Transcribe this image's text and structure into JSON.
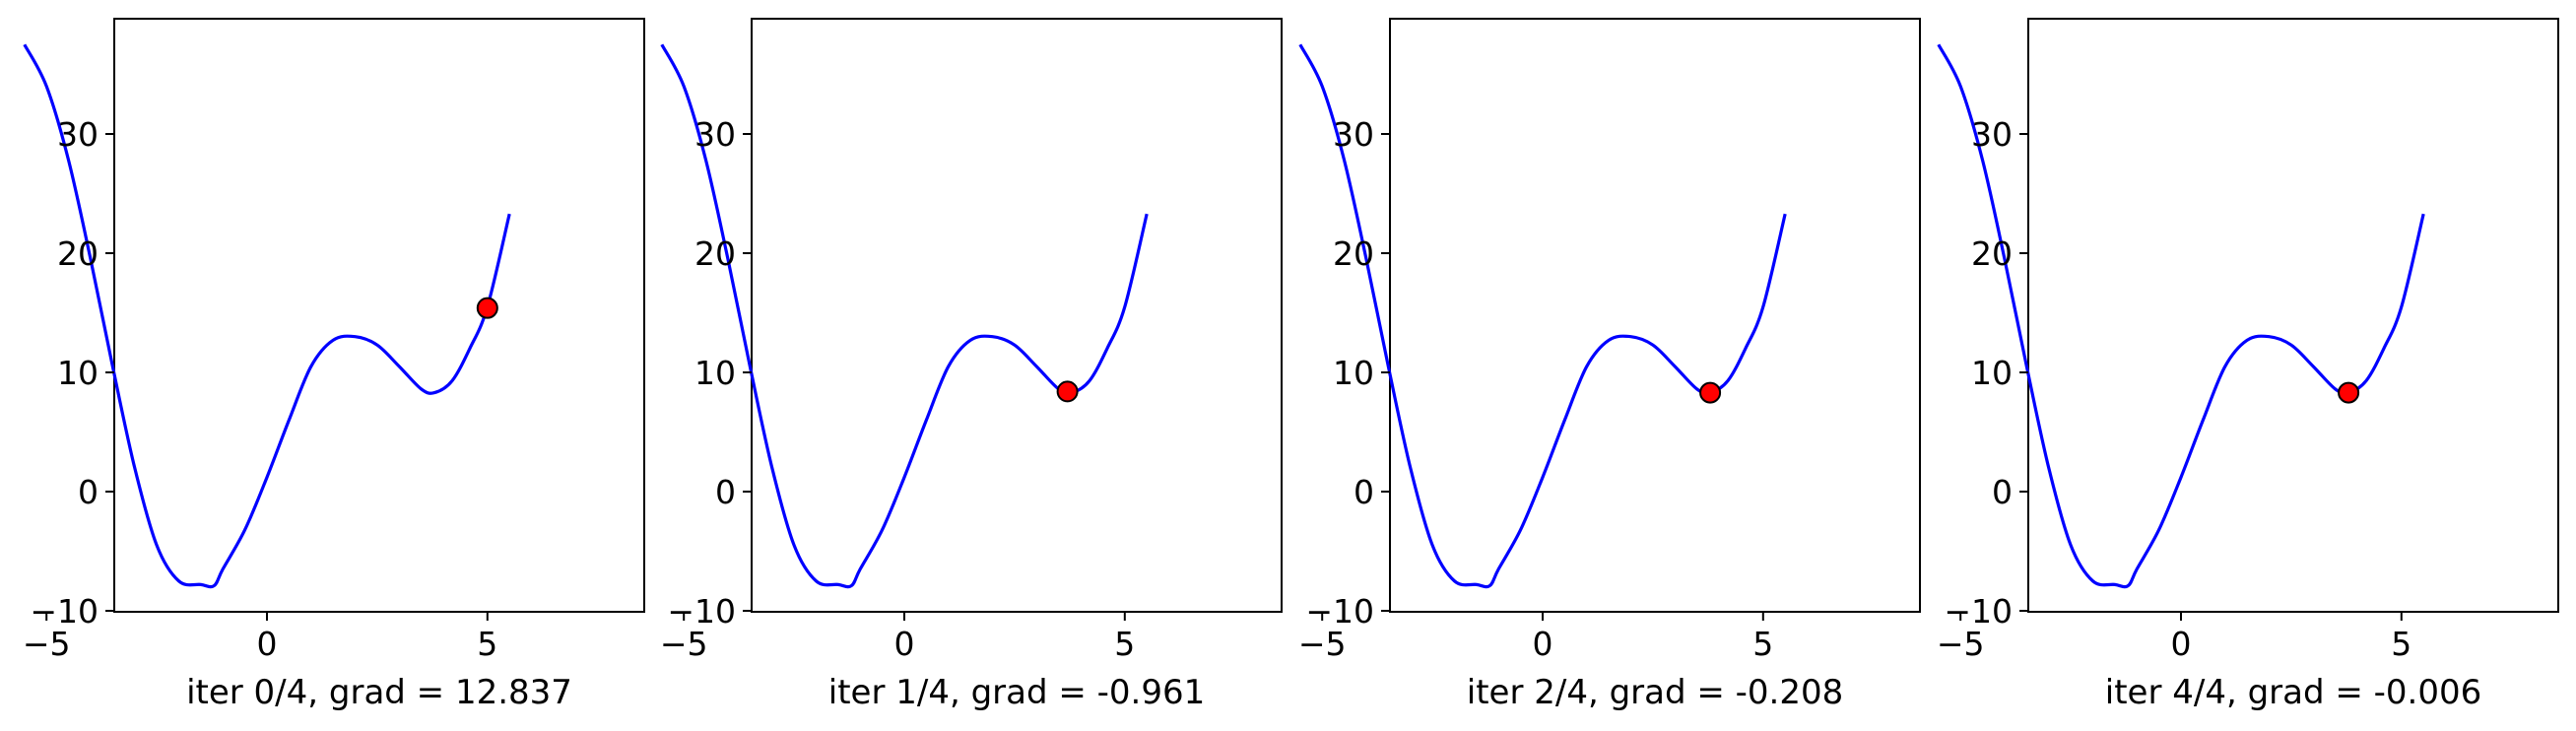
{
  "chart_data": [
    {
      "type": "line",
      "xlabel": "iter 0/4, grad = 12.837",
      "xlim": [
        -6.0,
        6.0
      ],
      "ylim": [
        -10,
        40
      ],
      "xticks": [
        -5,
        0,
        5
      ],
      "xtick_labels": [
        "−5",
        "0",
        "5"
      ],
      "yticks": [
        -10,
        0,
        10,
        20,
        30
      ],
      "ytick_labels": [
        "−10",
        "0",
        "10",
        "20",
        "30"
      ],
      "grid": false,
      "series": [
        {
          "x": [
            -5.5,
            -5.0,
            -4.5,
            -4.0,
            -3.5,
            -3.0,
            -2.5,
            -2.0,
            -1.5,
            -1.2,
            -1.0,
            -0.5,
            0.0,
            0.5,
            1.0,
            1.5,
            2.0,
            2.5,
            3.0,
            3.5,
            3.8,
            4.2,
            4.6,
            5.0,
            5.5
          ],
          "y": [
            37.5,
            34.0,
            27.8,
            19.5,
            10.5,
            2.0,
            -4.5,
            -7.5,
            -7.8,
            -7.9,
            -6.5,
            -3.2,
            1.2,
            6.0,
            10.5,
            12.7,
            13.0,
            12.3,
            10.5,
            8.6,
            8.3,
            9.3,
            12.0,
            15.5,
            23.3
          ],
          "color": "#0000ff"
        },
        {
          "x": [
            5.0
          ],
          "y": [
            15.4
          ],
          "marker": "circle",
          "color": "#ff0000",
          "edge": "#000000"
        }
      ]
    },
    {
      "type": "line",
      "xlabel": "iter 1/4, grad = -0.961",
      "xlim": [
        -6.0,
        6.0
      ],
      "ylim": [
        -10,
        40
      ],
      "xticks": [
        -5,
        0,
        5
      ],
      "xtick_labels": [
        "−5",
        "0",
        "5"
      ],
      "yticks": [
        -10,
        0,
        10,
        20,
        30
      ],
      "ytick_labels": [
        "−10",
        "0",
        "10",
        "20",
        "30"
      ],
      "grid": false,
      "series": [
        {
          "x": [
            -5.5,
            -5.0,
            -4.5,
            -4.0,
            -3.5,
            -3.0,
            -2.5,
            -2.0,
            -1.5,
            -1.2,
            -1.0,
            -0.5,
            0.0,
            0.5,
            1.0,
            1.5,
            2.0,
            2.5,
            3.0,
            3.5,
            3.8,
            4.2,
            4.6,
            5.0,
            5.5
          ],
          "y": [
            37.5,
            34.0,
            27.8,
            19.5,
            10.5,
            2.0,
            -4.5,
            -7.5,
            -7.8,
            -7.9,
            -6.5,
            -3.2,
            1.2,
            6.0,
            10.5,
            12.7,
            13.0,
            12.3,
            10.5,
            8.6,
            8.3,
            9.3,
            12.0,
            15.5,
            23.3
          ],
          "color": "#0000ff"
        },
        {
          "x": [
            3.7
          ],
          "y": [
            8.4
          ],
          "marker": "circle",
          "color": "#ff0000",
          "edge": "#000000"
        }
      ]
    },
    {
      "type": "line",
      "xlabel": "iter 2/4, grad = -0.208",
      "xlim": [
        -6.0,
        6.0
      ],
      "ylim": [
        -10,
        40
      ],
      "xticks": [
        -5,
        0,
        5
      ],
      "xtick_labels": [
        "−5",
        "0",
        "5"
      ],
      "yticks": [
        -10,
        0,
        10,
        20,
        30
      ],
      "ytick_labels": [
        "−10",
        "0",
        "10",
        "20",
        "30"
      ],
      "grid": false,
      "series": [
        {
          "x": [
            -5.5,
            -5.0,
            -4.5,
            -4.0,
            -3.5,
            -3.0,
            -2.5,
            -2.0,
            -1.5,
            -1.2,
            -1.0,
            -0.5,
            0.0,
            0.5,
            1.0,
            1.5,
            2.0,
            2.5,
            3.0,
            3.5,
            3.8,
            4.2,
            4.6,
            5.0,
            5.5
          ],
          "y": [
            37.5,
            34.0,
            27.8,
            19.5,
            10.5,
            2.0,
            -4.5,
            -7.5,
            -7.8,
            -7.9,
            -6.5,
            -3.2,
            1.2,
            6.0,
            10.5,
            12.7,
            13.0,
            12.3,
            10.5,
            8.6,
            8.3,
            9.3,
            12.0,
            15.5,
            23.3
          ],
          "color": "#0000ff"
        },
        {
          "x": [
            3.8
          ],
          "y": [
            8.3
          ],
          "marker": "circle",
          "color": "#ff0000",
          "edge": "#000000"
        }
      ]
    },
    {
      "type": "line",
      "xlabel": "iter 4/4, grad = -0.006",
      "xlim": [
        -6.0,
        6.0
      ],
      "ylim": [
        -10,
        40
      ],
      "xticks": [
        -5,
        0,
        5
      ],
      "xtick_labels": [
        "−5",
        "0",
        "5"
      ],
      "yticks": [
        -10,
        0,
        10,
        20,
        30
      ],
      "ytick_labels": [
        "−10",
        "0",
        "10",
        "20",
        "30"
      ],
      "grid": false,
      "series": [
        {
          "x": [
            -5.5,
            -5.0,
            -4.5,
            -4.0,
            -3.5,
            -3.0,
            -2.5,
            -2.0,
            -1.5,
            -1.2,
            -1.0,
            -0.5,
            0.0,
            0.5,
            1.0,
            1.5,
            2.0,
            2.5,
            3.0,
            3.5,
            3.8,
            4.2,
            4.6,
            5.0,
            5.5
          ],
          "y": [
            37.5,
            34.0,
            27.8,
            19.5,
            10.5,
            2.0,
            -4.5,
            -7.5,
            -7.8,
            -7.9,
            -6.5,
            -3.2,
            1.2,
            6.0,
            10.5,
            12.7,
            13.0,
            12.3,
            10.5,
            8.6,
            8.3,
            9.3,
            12.0,
            15.5,
            23.3
          ],
          "color": "#0000ff"
        },
        {
          "x": [
            3.8
          ],
          "y": [
            8.3
          ],
          "marker": "circle",
          "color": "#ff0000",
          "edge": "#000000"
        }
      ]
    }
  ]
}
